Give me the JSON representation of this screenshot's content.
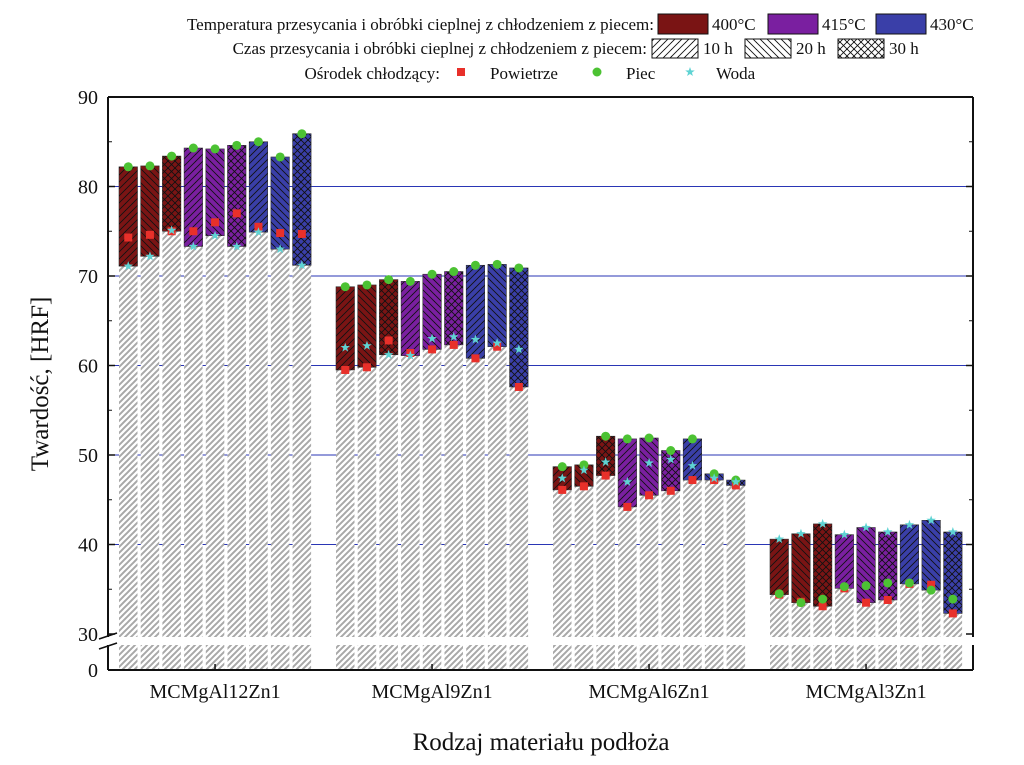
{
  "chart_data": {
    "type": "bar",
    "xlabel": "Rodzaj materiału podłoża",
    "ylabel": "Twardość, [HRF]",
    "y_ticks": [
      "0",
      "30",
      "40",
      "50",
      "60",
      "70",
      "80",
      "90"
    ],
    "y_tick_values": [
      0,
      30,
      40,
      50,
      60,
      70,
      80,
      90
    ],
    "ylim": [
      0,
      90
    ],
    "axis_break": [
      0,
      30
    ],
    "grid": true,
    "legend_placement": "top",
    "categories": [
      "MCMgAl12Zn1",
      "MCMgAl9Zn1",
      "MCMgAl6Zn1",
      "MCMgAl3Zn1"
    ],
    "legend": {
      "temperature_title": "Temperatura przesycania i obróbki cieplnej z chłodzeniem z piecem:",
      "temperatures": [
        {
          "label": "400°C",
          "color": "#7a1414"
        },
        {
          "label": "415°C",
          "color": "#7a1fa0"
        },
        {
          "label": "430°C",
          "color": "#3a3fa8"
        }
      ],
      "time_title": "Czas przesycania i obróbki cieplnej z chłodzeniem z piecem:",
      "times": [
        {
          "label": "10 h",
          "pattern": "diag"
        },
        {
          "label": "20 h",
          "pattern": "back"
        },
        {
          "label": "30 h",
          "pattern": "cross"
        }
      ],
      "medium_title": "Ośrodek chłodzący:",
      "media": [
        {
          "label": "Powietrze",
          "color": "#e8302a",
          "marker": "square"
        },
        {
          "label": "Piec",
          "color": "#4cc233",
          "marker": "circle"
        },
        {
          "label": "Woda",
          "color": "#5fd3d3",
          "marker": "star"
        }
      ]
    },
    "bar_series": [
      {
        "temperature": "400°C",
        "time": "10 h"
      },
      {
        "temperature": "400°C",
        "time": "20 h"
      },
      {
        "temperature": "400°C",
        "time": "30 h"
      },
      {
        "temperature": "415°C",
        "time": "10 h"
      },
      {
        "temperature": "415°C",
        "time": "20 h"
      },
      {
        "temperature": "415°C",
        "time": "30 h"
      },
      {
        "temperature": "430°C",
        "time": "10 h"
      },
      {
        "temperature": "430°C",
        "time": "20 h"
      },
      {
        "temperature": "430°C",
        "time": "30 h"
      }
    ],
    "groups": [
      {
        "category": "MCMgAl12Zn1",
        "piec": [
          82.2,
          82.3,
          83.4,
          84.3,
          84.2,
          84.6,
          85.0,
          83.3,
          85.9
        ],
        "powietrze": [
          74.3,
          74.6,
          75.0,
          75.0,
          76.0,
          77.0,
          75.5,
          74.8,
          74.7
        ],
        "woda": [
          71.1,
          72.2,
          75.1,
          73.3,
          74.5,
          73.3,
          74.9,
          73.0,
          71.2
        ]
      },
      {
        "category": "MCMgAl9Zn1",
        "piec": [
          68.8,
          69.0,
          69.6,
          69.4,
          70.2,
          70.5,
          71.2,
          71.3,
          70.9
        ],
        "powietrze": [
          59.5,
          59.8,
          62.8,
          61.4,
          61.8,
          62.3,
          60.8,
          62.1,
          57.6
        ],
        "woda": [
          62.0,
          62.2,
          61.2,
          61.1,
          63.0,
          63.2,
          62.9,
          62.5,
          61.8
        ]
      },
      {
        "category": "MCMgAl6Zn1",
        "piec": [
          48.7,
          48.9,
          52.1,
          51.8,
          51.9,
          50.5,
          51.8,
          47.9,
          47.2
        ],
        "powietrze": [
          46.1,
          46.5,
          47.7,
          44.2,
          45.5,
          46.0,
          47.2,
          47.2,
          46.6
        ],
        "woda": [
          47.4,
          48.3,
          49.2,
          47.0,
          49.1,
          49.5,
          48.8,
          47.4,
          47.0
        ]
      },
      {
        "category": "MCMgAl3Zn1",
        "piec": [
          34.5,
          33.5,
          33.9,
          35.3,
          35.4,
          35.7,
          35.7,
          34.9,
          33.9
        ],
        "powietrze": [
          34.4,
          33.6,
          33.1,
          35.1,
          33.5,
          33.8,
          35.6,
          35.5,
          32.3
        ],
        "woda": [
          40.6,
          41.2,
          42.3,
          41.1,
          41.9,
          41.4,
          42.2,
          42.7,
          41.4
        ]
      }
    ]
  }
}
